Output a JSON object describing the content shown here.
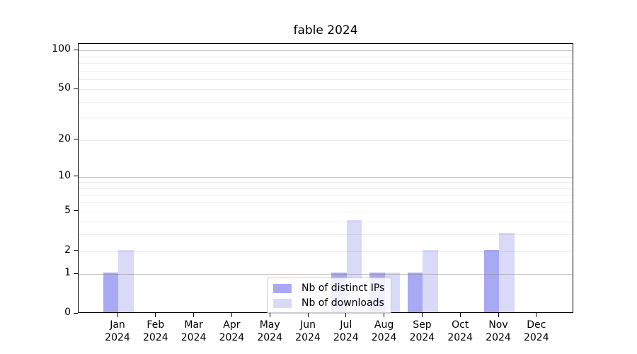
{
  "chart_data": {
    "type": "bar",
    "title": "fable 2024",
    "months": [
      "Jan",
      "Feb",
      "Mar",
      "Apr",
      "May",
      "Jun",
      "Jul",
      "Aug",
      "Sep",
      "Oct",
      "Nov",
      "Dec"
    ],
    "year_label": "2024",
    "series": [
      {
        "name": "Nb of distinct IPs",
        "color": "#a8a8f3",
        "values": [
          1,
          0,
          0,
          0,
          0,
          0,
          1,
          1,
          1,
          0,
          2,
          0
        ]
      },
      {
        "name": "Nb of downloads",
        "color": "#d9d9f8",
        "values": [
          2,
          0,
          0,
          0,
          0,
          0,
          4,
          1,
          2,
          0,
          3,
          0
        ]
      }
    ],
    "yscale": "log1p",
    "ylim": [
      0,
      112
    ],
    "ytick_values": [
      0,
      1,
      2,
      5,
      10,
      20,
      50,
      100
    ],
    "major_grid_values": [
      1,
      10,
      100
    ],
    "minor_grid_values": [
      2,
      3,
      4,
      5,
      6,
      7,
      8,
      9,
      20,
      30,
      40,
      50,
      60,
      70,
      80,
      90
    ],
    "grid": true,
    "legend_position": "lower center",
    "xlabel": "",
    "ylabel": ""
  },
  "colors": {
    "background": "#ffffff",
    "spine": "#000000",
    "major_grid": "#c6c6c6",
    "minor_grid": "#ebebeb",
    "legend_border": "#cccccc",
    "bar_distinct_ips": "#a8a8f3",
    "bar_downloads": "#d9d9f8"
  }
}
